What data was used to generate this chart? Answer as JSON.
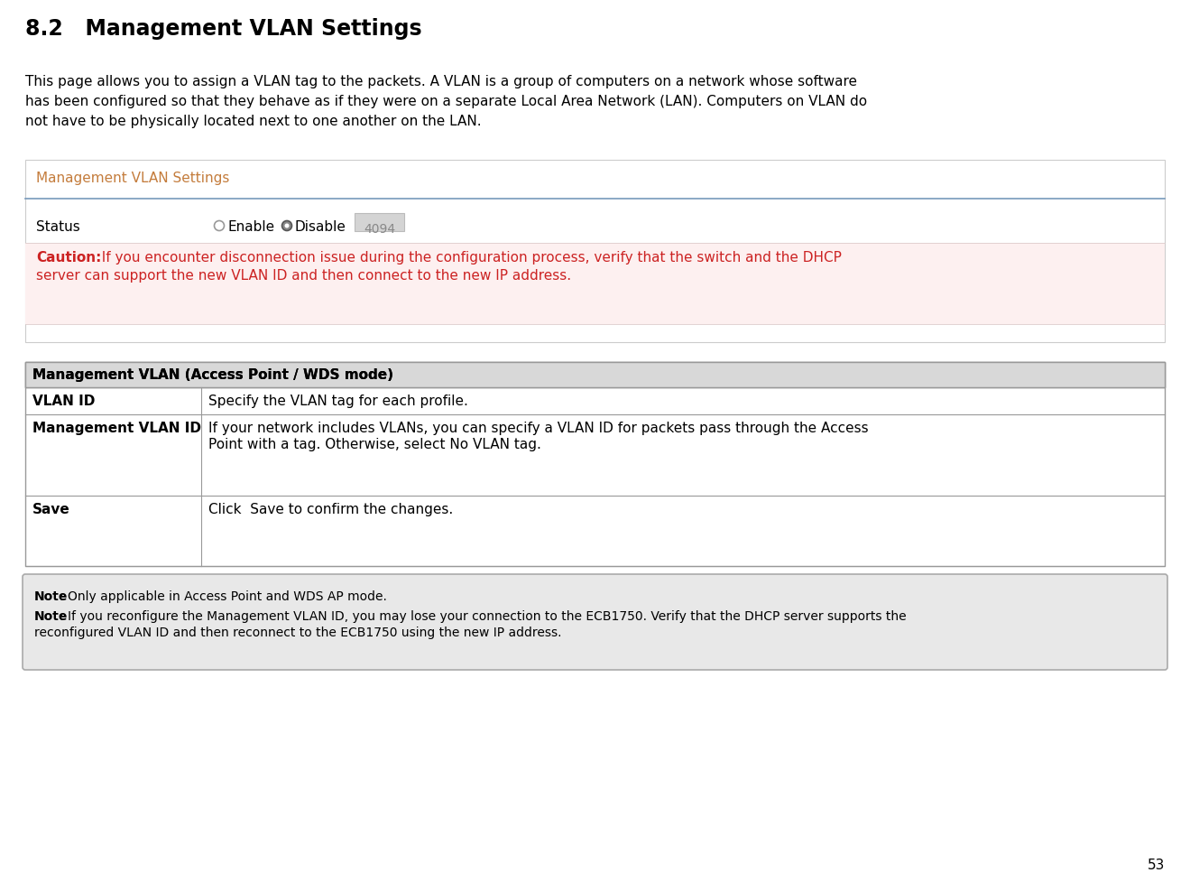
{
  "title": "8.2   Management VLAN Settings",
  "intro_lines": [
    "This page allows you to assign a VLAN tag to the packets. A VLAN is a group of computers on a network whose software",
    "has been configured so that they behave as if they were on a separate Local Area Network (LAN). Computers on VLAN do",
    "not have to be physically located next to one another on the LAN."
  ],
  "ui_box_title": "Management VLAN Settings",
  "ui_box_title_color": "#c47c3c",
  "status_label": "Status",
  "status_value": "4094",
  "caution_label": "Caution:",
  "caution_line1": "  If you encounter disconnection issue during the configuration process, verify that the switch and the DHCP",
  "caution_line2": "server can support the new VLAN ID and then connect to the new IP address.",
  "caution_color": "#cc2222",
  "table_header": "Management VLAN (Access Point / WDS mode)",
  "table_header_bg": "#d8d8d8",
  "table_rows": [
    {
      "col1": "VLAN ID",
      "col2_lines": [
        "Specify the VLAN tag for each profile."
      ]
    },
    {
      "col1": "Management VLAN ID",
      "col2_lines": [
        "If your network includes VLANs, you can specify a VLAN ID for packets pass through the Access",
        "Point with a tag. Otherwise, select No VLAN tag."
      ]
    },
    {
      "col1": "Save",
      "col2_lines": [
        "Click  Save to confirm the changes."
      ]
    }
  ],
  "note_box_bg": "#e8e8e8",
  "note1_bold": "Note",
  "note1_normal": ": Only applicable in Access Point and WDS AP mode.",
  "note2_bold": "Note",
  "note2_line1": ": If you reconfigure the Management VLAN ID, you may lose your connection to the ECB1750. Verify that the DHCP server supports the",
  "note2_line2": "reconfigured VLAN ID and then reconnect to the ECB1750 using the new IP address.",
  "page_number": "53",
  "bg_color": "#ffffff",
  "border_color": "#aaaaaa",
  "divider_color": "#7799bb",
  "table_border_color": "#999999"
}
